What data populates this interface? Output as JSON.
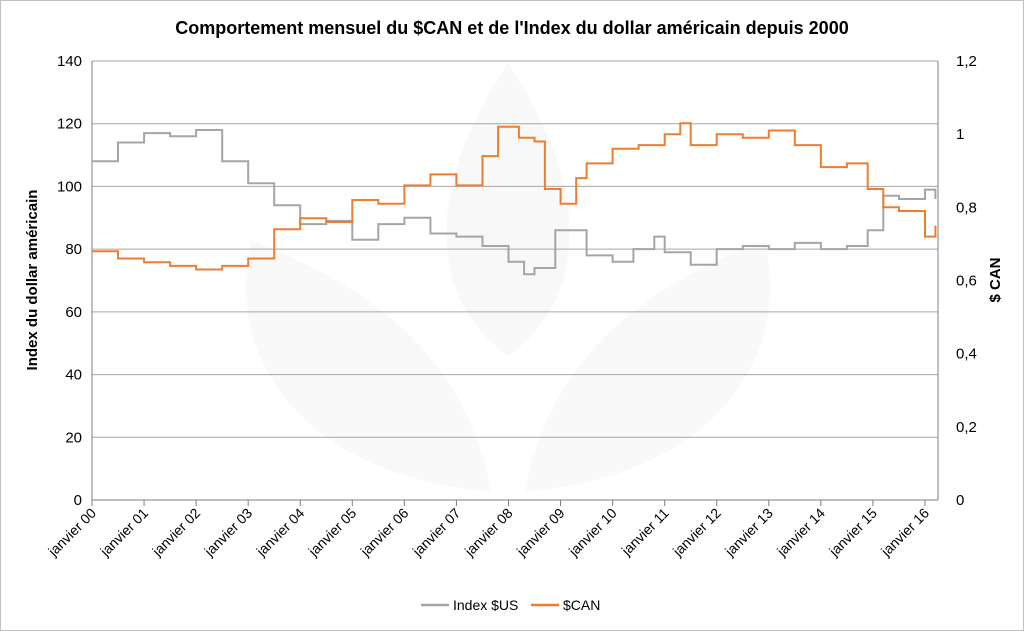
{
  "chart_data": {
    "type": "line",
    "title": "Comportement mensuel du $CAN et de l'Index du dollar américain depuis 2000",
    "ylabel": "Index du dollar américain",
    "y2label": "$ CAN",
    "ylim": [
      0,
      140
    ],
    "y2lim": [
      0,
      1.2
    ],
    "yticks": [
      "0",
      "20",
      "40",
      "60",
      "80",
      "100",
      "120",
      "140"
    ],
    "y2ticks": [
      "0",
      "0,2",
      "0,4",
      "0,6",
      "0,8",
      "1",
      "1,2"
    ],
    "categories": [
      "janvier 00",
      "janvier 01",
      "janvier 02",
      "janvier 03",
      "janvier 04",
      "janvier 05",
      "janvier 06",
      "janvier 07",
      "janvier 08",
      "janvier 09",
      "janvier 10",
      "janvier 11",
      "janvier 12",
      "janvier 13",
      "janvier 14",
      "janvier 15",
      "janvier 16"
    ],
    "grid": true,
    "legend_position": "bottom",
    "series": [
      {
        "name": "Index $US",
        "axis": "left",
        "color": "#a5a5a5",
        "x": [
          2000.0,
          2000.5,
          2001.0,
          2001.5,
          2002.0,
          2002.5,
          2003.0,
          2003.5,
          2004.0,
          2004.5,
          2005.0,
          2005.5,
          2006.0,
          2006.5,
          2007.0,
          2007.5,
          2008.0,
          2008.3,
          2008.5,
          2008.9,
          2009.2,
          2009.5,
          2010.0,
          2010.4,
          2010.8,
          2011.0,
          2011.5,
          2012.0,
          2012.5,
          2013.0,
          2013.5,
          2014.0,
          2014.5,
          2014.9,
          2015.2,
          2015.5,
          2016.0,
          2016.2
        ],
        "values": [
          108,
          114,
          117,
          116,
          118,
          108,
          101,
          94,
          88,
          89,
          83,
          88,
          90,
          85,
          84,
          81,
          76,
          72,
          74,
          86,
          86,
          78,
          76,
          80,
          84,
          79,
          75,
          80,
          81,
          80,
          82,
          80,
          81,
          86,
          97,
          96,
          99,
          96
        ]
      },
      {
        "name": "$CAN",
        "axis": "right",
        "color": "#ed7d31",
        "x": [
          2000.0,
          2000.5,
          2001.0,
          2001.5,
          2002.0,
          2002.5,
          2003.0,
          2003.5,
          2004.0,
          2004.5,
          2005.0,
          2005.5,
          2006.0,
          2006.5,
          2007.0,
          2007.5,
          2007.8,
          2008.2,
          2008.5,
          2008.7,
          2009.0,
          2009.3,
          2009.5,
          2010.0,
          2010.5,
          2011.0,
          2011.3,
          2011.5,
          2012.0,
          2012.5,
          2013.0,
          2013.5,
          2014.0,
          2014.5,
          2014.9,
          2015.2,
          2015.5,
          2016.0,
          2016.2
        ],
        "values": [
          0.68,
          0.66,
          0.65,
          0.64,
          0.63,
          0.64,
          0.66,
          0.74,
          0.77,
          0.76,
          0.82,
          0.81,
          0.86,
          0.89,
          0.86,
          0.94,
          1.02,
          0.99,
          0.98,
          0.85,
          0.81,
          0.88,
          0.92,
          0.96,
          0.97,
          1.0,
          1.03,
          0.97,
          1.0,
          0.99,
          1.01,
          0.97,
          0.91,
          0.92,
          0.85,
          0.8,
          0.79,
          0.72,
          0.75
        ]
      }
    ]
  }
}
